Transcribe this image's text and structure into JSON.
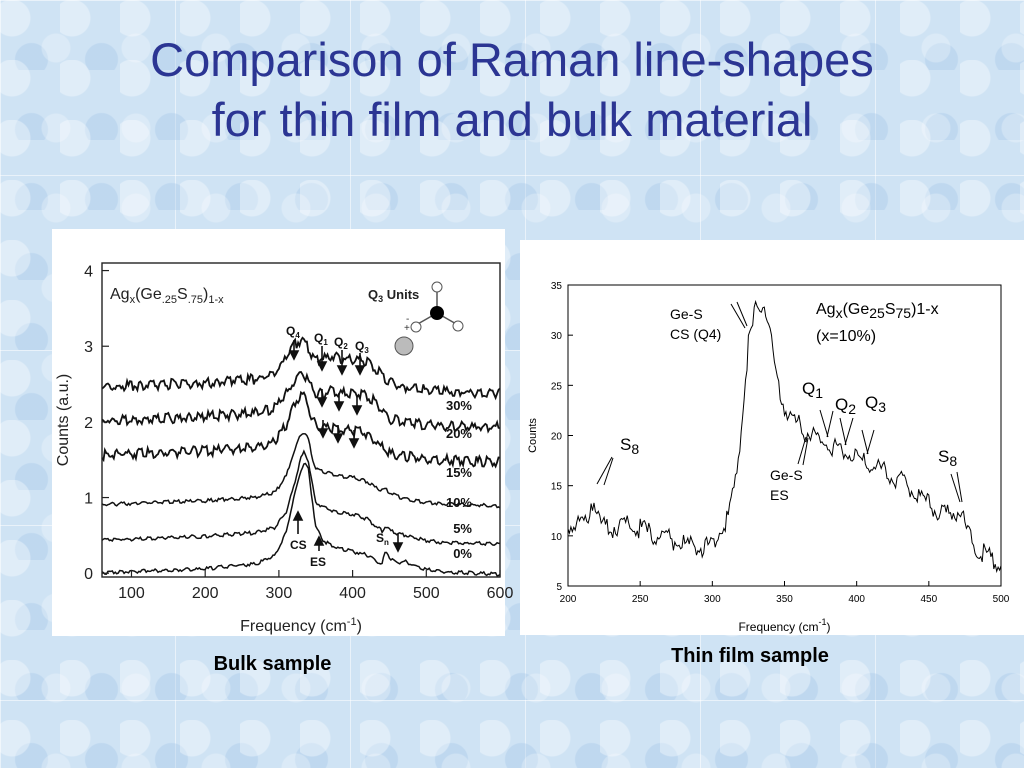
{
  "title": {
    "line1": "Comparison of Raman line-shapes",
    "line2": "for thin film and bulk material"
  },
  "captions": {
    "bulk": "Bulk sample",
    "film": "Thin film sample"
  },
  "chart_data": [
    {
      "type": "line",
      "formula": "Agx(Ge.25S.75)1-x",
      "inset_label": "Q3 Units",
      "xlabel": "Frequency (cm-1)",
      "ylabel": "Counts (a.u.)",
      "xlim": [
        60,
        600
      ],
      "ylim": [
        -0.05,
        4.1
      ],
      "x_ticks": [
        100,
        200,
        300,
        400,
        500,
        600
      ],
      "y_ticks": [
        0,
        1,
        2,
        3,
        4
      ],
      "peak_labels": [
        "Q4",
        "Q1",
        "Q2",
        "Q3",
        "CS",
        "ES",
        "Sn"
      ],
      "series": [
        {
          "name": "0%",
          "x": [
            60,
            200,
            270,
            295,
            310,
            320,
            330,
            335,
            340,
            345,
            350,
            360,
            370,
            380,
            400,
            420,
            430,
            440,
            445,
            450,
            460,
            470,
            480,
            500,
            520,
            600
          ],
          "values": [
            0.02,
            0.07,
            0.14,
            0.25,
            0.55,
            1.0,
            1.38,
            1.48,
            1.38,
            1.0,
            0.62,
            0.45,
            0.38,
            0.34,
            0.3,
            0.25,
            0.18,
            0.13,
            0.32,
            0.22,
            0.15,
            0.17,
            0.13,
            0.06,
            0.03,
            0.0
          ]
        },
        {
          "name": "5%",
          "x": [
            60,
            200,
            270,
            295,
            310,
            320,
            330,
            335,
            340,
            345,
            350,
            360,
            370,
            380,
            400,
            420,
            430,
            440,
            445,
            450,
            460,
            470,
            480,
            500,
            520,
            600
          ],
          "values": [
            0.45,
            0.5,
            0.55,
            0.62,
            0.82,
            1.15,
            1.55,
            1.62,
            1.5,
            1.2,
            0.95,
            0.88,
            0.85,
            0.82,
            0.79,
            0.73,
            0.64,
            0.57,
            0.63,
            0.58,
            0.54,
            0.52,
            0.49,
            0.44,
            0.42,
            0.4
          ]
        },
        {
          "name": "10%",
          "x": [
            60,
            200,
            270,
            295,
            310,
            320,
            330,
            335,
            340,
            345,
            350,
            360,
            370,
            380,
            400,
            420,
            430,
            440,
            445,
            450,
            460,
            470,
            480,
            500,
            520,
            600
          ],
          "values": [
            0.92,
            0.97,
            1.02,
            1.08,
            1.3,
            1.6,
            1.85,
            1.88,
            1.78,
            1.55,
            1.4,
            1.35,
            1.33,
            1.3,
            1.28,
            1.22,
            1.15,
            1.1,
            1.13,
            1.08,
            1.03,
            1.0,
            0.98,
            0.95,
            0.93,
            0.9
          ]
        },
        {
          "name": "15%",
          "x": [
            60,
            200,
            270,
            295,
            310,
            320,
            330,
            335,
            340,
            345,
            350,
            360,
            370,
            380,
            400,
            420,
            430,
            440,
            445,
            450,
            460,
            470,
            480,
            500,
            520,
            600
          ],
          "values": [
            1.6,
            1.65,
            1.7,
            1.78,
            2.0,
            2.25,
            2.4,
            2.38,
            2.25,
            2.08,
            2.0,
            1.97,
            1.96,
            1.95,
            1.92,
            1.88,
            1.78,
            1.7,
            1.66,
            1.62,
            1.6,
            1.58,
            1.57,
            1.55,
            1.53,
            1.5
          ]
        },
        {
          "name": "20%",
          "x": [
            60,
            200,
            270,
            295,
            310,
            320,
            330,
            335,
            340,
            345,
            350,
            360,
            370,
            380,
            400,
            420,
            430,
            440,
            445,
            450,
            460,
            470,
            480,
            500,
            520,
            600
          ],
          "values": [
            2.05,
            2.1,
            2.15,
            2.22,
            2.4,
            2.58,
            2.68,
            2.66,
            2.58,
            2.48,
            2.42,
            2.42,
            2.44,
            2.42,
            2.4,
            2.38,
            2.3,
            2.2,
            2.12,
            2.08,
            2.05,
            2.04,
            2.02,
            2.0,
            1.98,
            1.96
          ]
        },
        {
          "name": "30%",
          "x": [
            60,
            200,
            270,
            295,
            310,
            320,
            330,
            335,
            340,
            345,
            350,
            360,
            370,
            380,
            400,
            420,
            430,
            440,
            445,
            450,
            460,
            470,
            480,
            500,
            520,
            600
          ],
          "values": [
            2.5,
            2.55,
            2.6,
            2.68,
            2.88,
            3.05,
            3.12,
            3.1,
            3.02,
            2.92,
            2.86,
            2.87,
            2.9,
            2.88,
            2.86,
            2.83,
            2.75,
            2.66,
            2.6,
            2.56,
            2.52,
            2.5,
            2.48,
            2.46,
            2.44,
            2.42
          ]
        }
      ],
      "series_labels": [
        "30%",
        "20%",
        "15%",
        "10%",
        "5%",
        "0%"
      ]
    },
    {
      "type": "line",
      "formula_main": "Agx(Ge25S75)1-x",
      "formula_conc": "(x=10%)",
      "xlabel": "Frequency (cm-1)",
      "ylabel": "Counts",
      "xlim": [
        200,
        500
      ],
      "ylim": [
        5,
        35
      ],
      "x_ticks": [
        200,
        250,
        300,
        350,
        400,
        450,
        500
      ],
      "y_ticks": [
        5,
        10,
        15,
        20,
        25,
        30,
        35
      ],
      "annotations": [
        "Ge-S",
        "CS (Q4)",
        "Q1",
        "Q2",
        "Q3",
        "S8",
        "Ge-S",
        "ES",
        "S8"
      ],
      "series": [
        {
          "x": [
            200,
            205,
            210,
            214,
            216,
            218,
            220,
            222,
            225,
            230,
            240,
            250,
            260,
            270,
            280,
            290,
            295,
            300,
            305,
            310,
            315,
            318,
            320,
            322,
            325,
            328,
            330,
            332,
            334,
            336,
            338,
            340,
            343,
            346,
            350,
            355,
            360,
            365,
            370,
            375,
            380,
            385,
            390,
            395,
            400,
            405,
            410,
            420,
            430,
            440,
            450,
            455,
            460,
            465,
            470,
            473,
            475,
            480,
            485,
            490,
            495,
            500
          ],
          "values": [
            11.5,
            11.8,
            11.6,
            12.5,
            14.0,
            14.2,
            12.8,
            11.6,
            11.5,
            11.4,
            11.8,
            11.2,
            10.6,
            10.2,
            9.8,
            9.5,
            9.3,
            9.8,
            10.8,
            12.0,
            15.0,
            18.5,
            21.5,
            25.0,
            29.5,
            31.5,
            33.0,
            33.5,
            33.2,
            33.5,
            32.5,
            30.5,
            27.5,
            25.0,
            23.5,
            22.2,
            21.5,
            21.0,
            20.5,
            19.8,
            19.6,
            19.2,
            19.0,
            18.8,
            18.5,
            18.0,
            17.5,
            17.0,
            16.0,
            15.0,
            13.8,
            13.0,
            12.6,
            12.8,
            13.2,
            12.8,
            11.5,
            10.0,
            9.2,
            8.8,
            8.2,
            7.8
          ]
        }
      ]
    }
  ]
}
